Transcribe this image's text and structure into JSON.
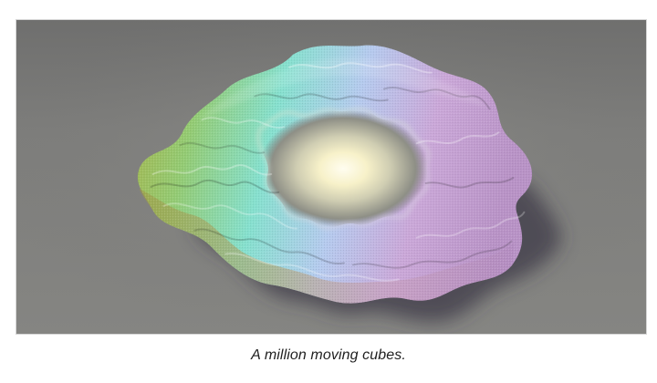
{
  "figure": {
    "caption": "A million moving cubes.",
    "colors": {
      "background": "#7a7a78",
      "glow_center": "#fffbe8",
      "ring_green": "#8fd46a",
      "ring_cyan": "#86e5d7",
      "ring_blue": "#b9c8ee",
      "ring_violet": "#c9a6d8",
      "ring_gold": "#b8b04a",
      "shadow": "#3b3b44"
    }
  }
}
